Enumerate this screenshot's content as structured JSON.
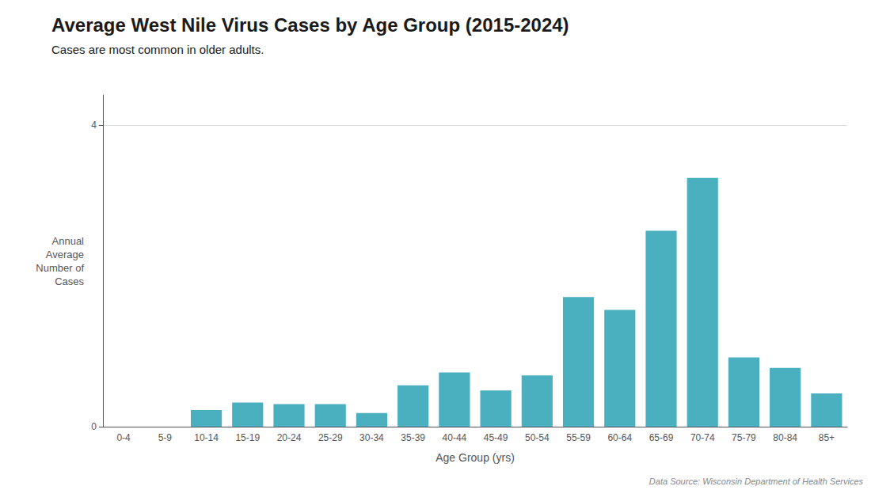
{
  "chart_data": {
    "type": "bar",
    "title": "Average West Nile Virus Cases by Age Group (2015-2024)",
    "subtitle": "Cases are most common in older adults.",
    "xlabel": "Age Group (yrs)",
    "ylabel": "Annual\nAverage\nNumber of\nCases",
    "categories": [
      "0-4",
      "5-9",
      "10-14",
      "15-19",
      "20-24",
      "25-29",
      "30-34",
      "35-39",
      "40-44",
      "45-49",
      "50-54",
      "55-59",
      "60-64",
      "65-69",
      "70-74",
      "75-79",
      "80-84",
      "85+"
    ],
    "values": [
      0.0,
      0.0,
      0.22,
      0.32,
      0.3,
      0.3,
      0.18,
      0.55,
      0.72,
      0.48,
      0.68,
      1.72,
      1.55,
      2.6,
      3.3,
      0.92,
      0.78,
      0.44
    ],
    "color": "#4aafbf",
    "ylim": [
      0,
      4.4
    ],
    "yticks": [
      0,
      4
    ],
    "grid": true,
    "annotations": [
      "Data Source: Wisconsin Department of Health Services"
    ]
  }
}
